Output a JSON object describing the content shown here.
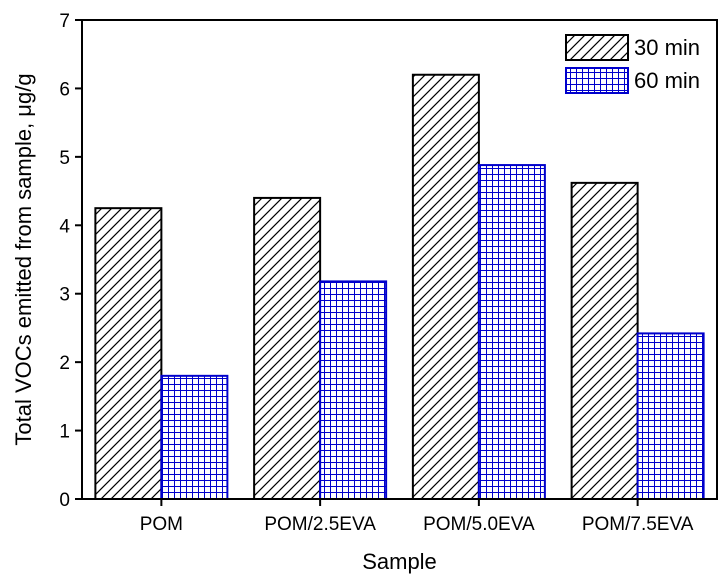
{
  "chart_data": {
    "type": "bar",
    "categories": [
      "POM",
      "POM/2.5EVA",
      "POM/5.0EVA",
      "POM/7.5EVA"
    ],
    "series": [
      {
        "name": "30 min",
        "values": [
          4.25,
          4.4,
          6.2,
          4.62
        ],
        "color": "#000000",
        "pattern": "diagonal-hatch"
      },
      {
        "name": "60 min",
        "values": [
          1.8,
          3.18,
          4.88,
          2.42
        ],
        "color": "#0000cc",
        "pattern": "grid-hatch"
      }
    ],
    "xlabel": "Sample",
    "ylabel": "Total VOCs emitted from sample, μg/g",
    "ylim": [
      0,
      7
    ],
    "yticks": [
      0,
      1,
      2,
      3,
      4,
      5,
      6,
      7
    ],
    "grid": false,
    "legend": "top-right"
  }
}
